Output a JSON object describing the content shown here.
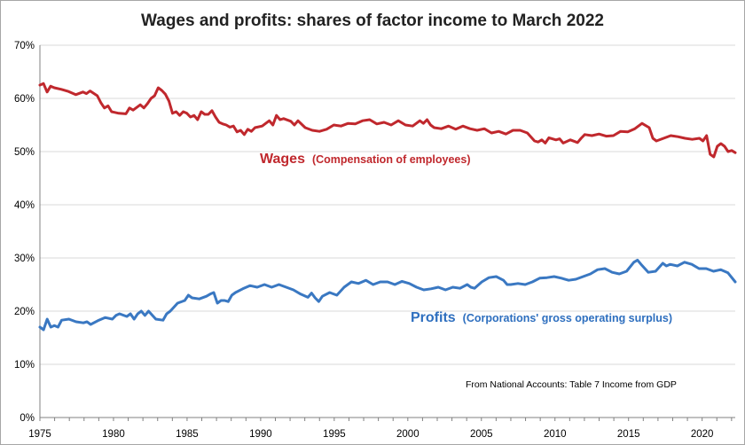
{
  "chart_data": {
    "type": "line",
    "title": "Wages and profits: shares of factor income to March 2022",
    "xlabel": "",
    "ylabel": "",
    "xlim": [
      1975,
      2022.25
    ],
    "ylim": [
      0,
      70
    ],
    "grid": "horizontal",
    "x_ticks": [
      1975,
      1980,
      1985,
      1990,
      1995,
      2000,
      2005,
      2010,
      2015,
      2020
    ],
    "y_ticks": [
      "0%",
      "10%",
      "20%",
      "30%",
      "40%",
      "50%",
      "60%",
      "70%"
    ],
    "annotation": "From National Accounts: Table 7 Income from GDP",
    "series": [
      {
        "name": "Wages",
        "subtitle": "(Compensation of employees)",
        "color": "#c0282d",
        "points": [
          [
            1975.0,
            62.5
          ],
          [
            1975.25,
            62.8
          ],
          [
            1975.5,
            61.2
          ],
          [
            1975.75,
            62.3
          ],
          [
            1976.0,
            62.0
          ],
          [
            1976.5,
            61.7
          ],
          [
            1977.0,
            61.3
          ],
          [
            1977.5,
            60.7
          ],
          [
            1978.0,
            61.2
          ],
          [
            1978.25,
            60.9
          ],
          [
            1978.5,
            61.4
          ],
          [
            1979.0,
            60.5
          ],
          [
            1979.25,
            59.2
          ],
          [
            1979.5,
            58.2
          ],
          [
            1979.75,
            58.6
          ],
          [
            1980.0,
            57.5
          ],
          [
            1980.5,
            57.2
          ],
          [
            1981.0,
            57.1
          ],
          [
            1981.25,
            58.2
          ],
          [
            1981.5,
            57.8
          ],
          [
            1982.0,
            58.8
          ],
          [
            1982.25,
            58.2
          ],
          [
            1982.5,
            59.0
          ],
          [
            1982.75,
            60.0
          ],
          [
            1983.0,
            60.5
          ],
          [
            1983.25,
            62.0
          ],
          [
            1983.5,
            61.5
          ],
          [
            1983.75,
            60.8
          ],
          [
            1984.0,
            59.5
          ],
          [
            1984.25,
            57.2
          ],
          [
            1984.5,
            57.5
          ],
          [
            1984.75,
            56.8
          ],
          [
            1985.0,
            57.5
          ],
          [
            1985.25,
            57.2
          ],
          [
            1985.5,
            56.5
          ],
          [
            1985.75,
            56.8
          ],
          [
            1986.0,
            56.0
          ],
          [
            1986.25,
            57.5
          ],
          [
            1986.5,
            57.0
          ],
          [
            1986.75,
            57.0
          ],
          [
            1987.0,
            57.7
          ],
          [
            1987.25,
            56.5
          ],
          [
            1987.5,
            55.5
          ],
          [
            1987.75,
            55.2
          ],
          [
            1988.0,
            55.0
          ],
          [
            1988.25,
            54.6
          ],
          [
            1988.5,
            54.8
          ],
          [
            1988.75,
            53.7
          ],
          [
            1989.0,
            54.0
          ],
          [
            1989.25,
            53.2
          ],
          [
            1989.5,
            54.2
          ],
          [
            1989.75,
            53.8
          ],
          [
            1990.0,
            54.5
          ],
          [
            1990.5,
            54.8
          ],
          [
            1991.0,
            55.8
          ],
          [
            1991.25,
            55.0
          ],
          [
            1991.5,
            56.8
          ],
          [
            1991.75,
            56.0
          ],
          [
            1992.0,
            56.2
          ],
          [
            1992.5,
            55.7
          ],
          [
            1992.75,
            55.0
          ],
          [
            1993.0,
            55.8
          ],
          [
            1993.5,
            54.5
          ],
          [
            1994.0,
            54.0
          ],
          [
            1994.5,
            53.8
          ],
          [
            1995.0,
            54.2
          ],
          [
            1995.5,
            55.0
          ],
          [
            1996.0,
            54.8
          ],
          [
            1996.5,
            55.3
          ],
          [
            1997.0,
            55.2
          ],
          [
            1997.5,
            55.8
          ],
          [
            1998.0,
            56.0
          ],
          [
            1998.5,
            55.2
          ],
          [
            1999.0,
            55.5
          ],
          [
            1999.5,
            55.0
          ],
          [
            2000.0,
            55.8
          ],
          [
            2000.5,
            55.0
          ],
          [
            2001.0,
            54.8
          ],
          [
            2001.5,
            55.8
          ],
          [
            2001.75,
            55.3
          ],
          [
            2002.0,
            56.0
          ],
          [
            2002.25,
            55.0
          ],
          [
            2002.5,
            54.5
          ],
          [
            2003.0,
            54.3
          ],
          [
            2003.5,
            54.8
          ],
          [
            2004.0,
            54.2
          ],
          [
            2004.5,
            54.8
          ],
          [
            2005.0,
            54.3
          ],
          [
            2005.5,
            54.0
          ],
          [
            2006.0,
            54.3
          ],
          [
            2006.5,
            53.5
          ],
          [
            2007.0,
            53.8
          ],
          [
            2007.5,
            53.3
          ],
          [
            2008.0,
            54.0
          ],
          [
            2008.5,
            54.0
          ],
          [
            2009.0,
            53.5
          ],
          [
            2009.5,
            52.0
          ],
          [
            2009.75,
            51.8
          ],
          [
            2010.0,
            52.2
          ],
          [
            2010.25,
            51.6
          ],
          [
            2010.5,
            52.6
          ],
          [
            2011.0,
            52.2
          ],
          [
            2011.25,
            52.4
          ],
          [
            2011.5,
            51.6
          ],
          [
            2012.0,
            52.2
          ],
          [
            2012.5,
            51.7
          ],
          [
            2012.75,
            52.5
          ],
          [
            2013.0,
            53.2
          ],
          [
            2013.5,
            53.0
          ],
          [
            2014.0,
            53.3
          ],
          [
            2014.5,
            52.9
          ],
          [
            2015.0,
            53.0
          ],
          [
            2015.5,
            53.8
          ],
          [
            2016.0,
            53.7
          ],
          [
            2016.5,
            54.3
          ],
          [
            2017.0,
            55.3
          ],
          [
            2017.5,
            54.5
          ],
          [
            2017.75,
            52.5
          ],
          [
            2018.0,
            52.0
          ],
          [
            2018.5,
            52.5
          ],
          [
            2019.0,
            53.0
          ],
          [
            2019.5,
            52.8
          ],
          [
            2020.0,
            52.5
          ],
          [
            2020.5,
            52.3
          ],
          [
            2021.0,
            52.5
          ],
          [
            2021.25,
            52.0
          ],
          [
            2021.5,
            53.0
          ],
          [
            2021.75,
            49.5
          ],
          [
            2022.0,
            49.0
          ],
          [
            2022.25,
            51.0
          ],
          [
            2022.5,
            51.5
          ],
          [
            2022.75,
            51.0
          ],
          [
            2023.0,
            50.0
          ],
          [
            2023.25,
            50.2
          ],
          [
            2023.5,
            49.8
          ]
        ]
      },
      {
        "name": "Profits",
        "subtitle": "(Corporations' gross operating surplus)",
        "color": "#3a78c2",
        "points": [
          [
            1975.0,
            17.0
          ],
          [
            1975.25,
            16.5
          ],
          [
            1975.5,
            18.5
          ],
          [
            1975.75,
            17.0
          ],
          [
            1976.0,
            17.3
          ],
          [
            1976.25,
            17.0
          ],
          [
            1976.5,
            18.3
          ],
          [
            1977.0,
            18.5
          ],
          [
            1977.5,
            18.0
          ],
          [
            1978.0,
            17.8
          ],
          [
            1978.25,
            18.0
          ],
          [
            1978.5,
            17.5
          ],
          [
            1979.0,
            18.2
          ],
          [
            1979.5,
            18.8
          ],
          [
            1980.0,
            18.5
          ],
          [
            1980.25,
            19.2
          ],
          [
            1980.5,
            19.5
          ],
          [
            1981.0,
            19.0
          ],
          [
            1981.25,
            19.5
          ],
          [
            1981.5,
            18.5
          ],
          [
            1981.75,
            19.5
          ],
          [
            1982.0,
            20.0
          ],
          [
            1982.25,
            19.2
          ],
          [
            1982.5,
            20.0
          ],
          [
            1983.0,
            18.5
          ],
          [
            1983.5,
            18.3
          ],
          [
            1983.75,
            19.5
          ],
          [
            1984.0,
            20.0
          ],
          [
            1984.5,
            21.5
          ],
          [
            1985.0,
            22.0
          ],
          [
            1985.25,
            23.0
          ],
          [
            1985.5,
            22.5
          ],
          [
            1986.0,
            22.3
          ],
          [
            1986.5,
            22.8
          ],
          [
            1986.75,
            23.2
          ],
          [
            1987.0,
            23.5
          ],
          [
            1987.25,
            21.5
          ],
          [
            1987.5,
            22.0
          ],
          [
            1987.75,
            22.0
          ],
          [
            1988.0,
            21.8
          ],
          [
            1988.25,
            23.0
          ],
          [
            1988.5,
            23.5
          ],
          [
            1989.0,
            24.2
          ],
          [
            1989.5,
            24.8
          ],
          [
            1990.0,
            24.5
          ],
          [
            1990.5,
            25.0
          ],
          [
            1991.0,
            24.5
          ],
          [
            1991.5,
            25.0
          ],
          [
            1992.0,
            24.5
          ],
          [
            1992.5,
            24.0
          ],
          [
            1993.0,
            23.2
          ],
          [
            1993.5,
            22.6
          ],
          [
            1993.75,
            23.4
          ],
          [
            1994.0,
            22.5
          ],
          [
            1994.25,
            21.8
          ],
          [
            1994.5,
            22.8
          ],
          [
            1995.0,
            23.5
          ],
          [
            1995.5,
            23.0
          ],
          [
            1996.0,
            24.5
          ],
          [
            1996.5,
            25.5
          ],
          [
            1997.0,
            25.2
          ],
          [
            1997.5,
            25.8
          ],
          [
            1998.0,
            25.0
          ],
          [
            1998.5,
            25.5
          ],
          [
            1999.0,
            25.5
          ],
          [
            1999.5,
            25.0
          ],
          [
            2000.0,
            25.6
          ],
          [
            2000.5,
            25.2
          ],
          [
            2001.0,
            24.5
          ],
          [
            2001.5,
            24.0
          ],
          [
            2002.0,
            24.2
          ],
          [
            2002.5,
            24.5
          ],
          [
            2003.0,
            24.0
          ],
          [
            2003.5,
            24.5
          ],
          [
            2004.0,
            24.3
          ],
          [
            2004.5,
            25.0
          ],
          [
            2004.75,
            24.5
          ],
          [
            2005.0,
            24.3
          ],
          [
            2005.5,
            25.5
          ],
          [
            2006.0,
            26.3
          ],
          [
            2006.5,
            26.5
          ],
          [
            2007.0,
            25.8
          ],
          [
            2007.25,
            25.0
          ],
          [
            2007.5,
            25.0
          ],
          [
            2008.0,
            25.2
          ],
          [
            2008.5,
            25.0
          ],
          [
            2009.0,
            25.5
          ],
          [
            2009.5,
            26.2
          ],
          [
            2010.0,
            26.3
          ],
          [
            2010.5,
            26.5
          ],
          [
            2011.0,
            26.2
          ],
          [
            2011.5,
            25.8
          ],
          [
            2012.0,
            26.0
          ],
          [
            2012.5,
            26.5
          ],
          [
            2013.0,
            27.0
          ],
          [
            2013.5,
            27.8
          ],
          [
            2014.0,
            28.0
          ],
          [
            2014.5,
            27.3
          ],
          [
            2015.0,
            27.0
          ],
          [
            2015.5,
            27.5
          ],
          [
            2016.0,
            29.2
          ],
          [
            2016.25,
            29.6
          ],
          [
            2016.5,
            28.8
          ],
          [
            2017.0,
            27.3
          ],
          [
            2017.5,
            27.5
          ],
          [
            2018.0,
            29.0
          ],
          [
            2018.25,
            28.5
          ],
          [
            2018.5,
            28.8
          ],
          [
            2019.0,
            28.5
          ],
          [
            2019.5,
            29.2
          ],
          [
            2020.0,
            28.8
          ],
          [
            2020.5,
            28.0
          ],
          [
            2021.0,
            28.0
          ],
          [
            2021.5,
            27.5
          ],
          [
            2022.0,
            27.8
          ],
          [
            2022.5,
            27.2
          ],
          [
            2023.0,
            25.5
          ]
        ]
      }
    ]
  }
}
